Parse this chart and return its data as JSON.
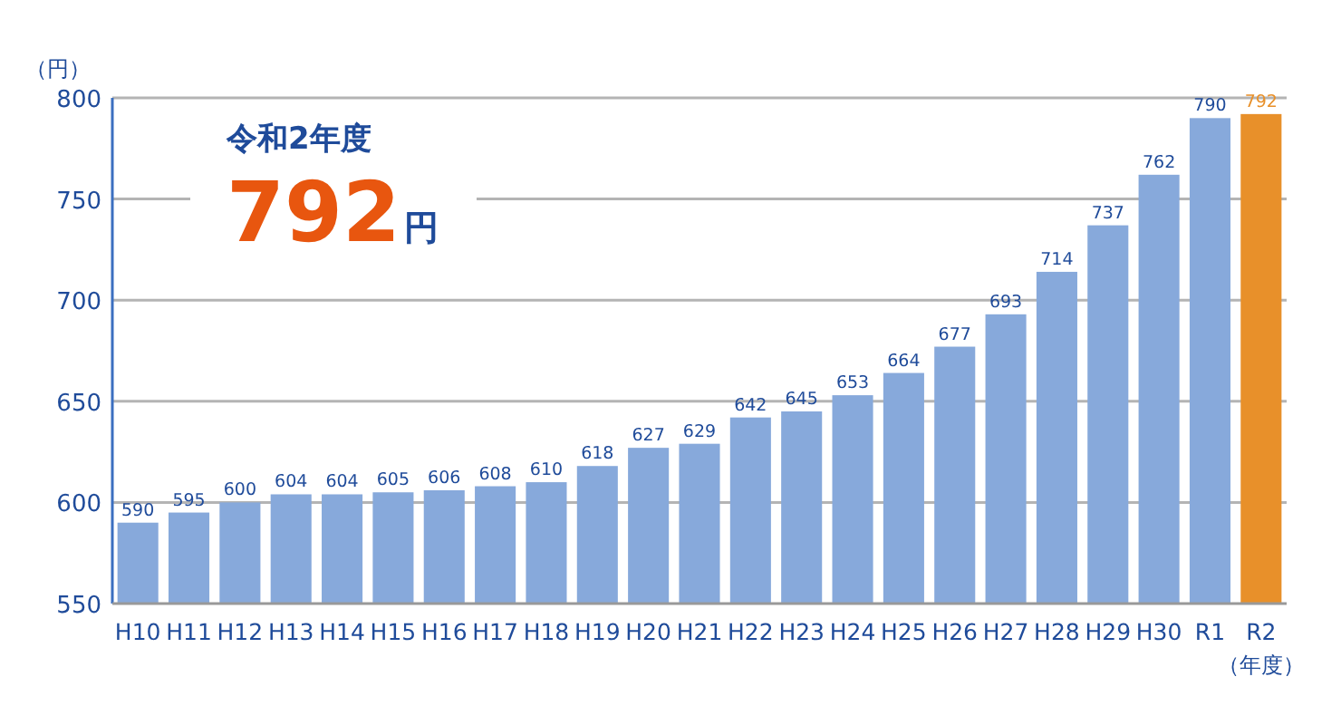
{
  "chart_data": {
    "type": "bar",
    "ylabel": "（円）",
    "xlabel": "（年度）",
    "annotations": [
      "令和2年度",
      "792",
      "円"
    ],
    "categories": [
      "H10",
      "H11",
      "H12",
      "H13",
      "H14",
      "H15",
      "H16",
      "H17",
      "H18",
      "H19",
      "H20",
      "H21",
      "H22",
      "H23",
      "H24",
      "H25",
      "H26",
      "H27",
      "H28",
      "H29",
      "H30",
      "R1",
      "R2"
    ],
    "values": [
      590,
      595,
      600,
      604,
      604,
      605,
      606,
      608,
      610,
      618,
      627,
      629,
      642,
      645,
      653,
      664,
      677,
      693,
      714,
      737,
      762,
      790,
      792
    ],
    "colors": [
      "#87a9db",
      "#87a9db",
      "#87a9db",
      "#87a9db",
      "#87a9db",
      "#87a9db",
      "#87a9db",
      "#87a9db",
      "#87a9db",
      "#87a9db",
      "#87a9db",
      "#87a9db",
      "#87a9db",
      "#87a9db",
      "#87a9db",
      "#87a9db",
      "#87a9db",
      "#87a9db",
      "#87a9db",
      "#87a9db",
      "#87a9db",
      "#87a9db",
      "#e8902a"
    ],
    "ylim": [
      550,
      800
    ],
    "yticks": [
      550,
      600,
      650,
      700,
      750,
      800
    ],
    "grid": "y",
    "data_labels": true
  }
}
